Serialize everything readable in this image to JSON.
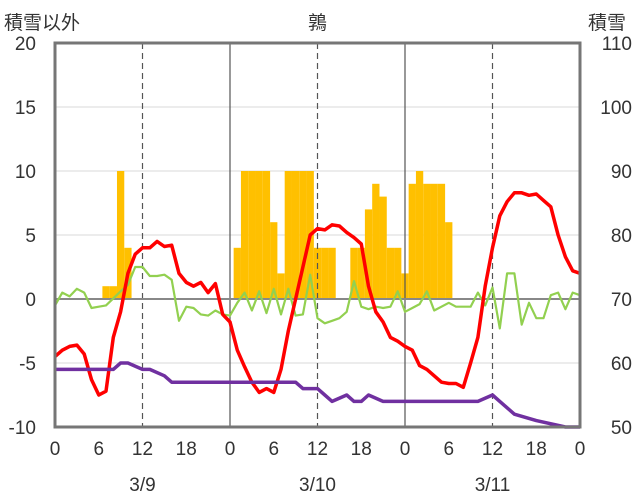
{
  "header": {
    "left_label": "積雪以外",
    "title": "鶉",
    "right_label": "積雪"
  },
  "chart_data": {
    "type": "bar",
    "title": "鶉",
    "y_left": {
      "label": "積雪以外",
      "lim": [
        -10,
        20
      ],
      "ticks": [
        "20",
        "15",
        "10",
        "5",
        "0",
        "-5",
        "-10"
      ]
    },
    "y_right": {
      "label": "積雪",
      "lim": [
        50,
        110
      ],
      "ticks": [
        "110",
        "100",
        "90",
        "80",
        "70",
        "60",
        "50"
      ]
    },
    "x_hours": [
      "0",
      "6",
      "12",
      "18",
      "0",
      "6",
      "12",
      "18",
      "0",
      "6",
      "12",
      "18",
      "0"
    ],
    "dates": [
      "3/9",
      "3/10",
      "3/11"
    ],
    "grid": "dashed vertical lines at 12h, solid at day boundaries",
    "colors": {
      "bars": "#ffc000",
      "red_line": "#ff0000",
      "green_line": "#92d050",
      "purple_line": "#7030a0",
      "zero_line": "#888888",
      "grid": "#555555"
    },
    "series": [
      {
        "kind": "bar",
        "color": "#ffc000",
        "x": [
          7,
          8,
          9,
          10,
          25,
          26,
          27,
          28,
          29,
          30,
          31,
          32,
          33,
          34,
          35,
          36,
          37,
          38,
          41,
          42,
          43,
          44,
          45,
          46,
          47,
          48,
          49,
          50,
          51,
          52,
          53,
          54
        ],
        "values": [
          1,
          1,
          10,
          4,
          4,
          10,
          10,
          10,
          10,
          6,
          2,
          10,
          10,
          10,
          10,
          4,
          4,
          4,
          4,
          4,
          7,
          9,
          8,
          4,
          4,
          2,
          9,
          10,
          9,
          9,
          9,
          6
        ]
      },
      {
        "kind": "line",
        "color": "#ff0000",
        "axis": "left",
        "x": [
          0,
          1,
          2,
          3,
          4,
          5,
          6,
          7,
          8,
          9,
          10,
          11,
          12,
          13,
          14,
          15,
          16,
          17,
          18,
          19,
          20,
          21,
          22,
          23,
          24,
          25,
          26,
          27,
          28,
          29,
          30,
          31,
          32,
          33,
          34,
          35,
          36,
          37,
          38,
          39,
          40,
          41,
          42,
          43,
          44,
          45,
          46,
          47,
          48,
          49,
          50,
          51,
          52,
          53,
          54,
          55,
          56,
          57,
          58,
          59,
          60,
          61,
          62,
          63,
          64,
          65,
          66,
          67,
          68,
          69,
          70,
          71,
          72
        ],
        "values": [
          -4.5,
          -4,
          -3.7,
          -3.6,
          -4.3,
          -6.3,
          -7.5,
          -7.2,
          -3,
          -1,
          2,
          3.5,
          4,
          4,
          4.5,
          4.1,
          4.2,
          2,
          1.3,
          1,
          1.3,
          0.5,
          1.2,
          -1.2,
          -1.8,
          -4,
          -5.3,
          -6.5,
          -7.3,
          -7,
          -7.3,
          -5.5,
          -2.5,
          0,
          2.5,
          5,
          5.5,
          5.4,
          5.8,
          5.7,
          5.2,
          4.8,
          4.3,
          1,
          -1,
          -1.8,
          -3,
          -3.3,
          -3.7,
          -4,
          -5.2,
          -5.5,
          -6,
          -6.5,
          -6.6,
          -6.6,
          -6.9,
          -5,
          -3,
          1,
          4,
          6.5,
          7.6,
          8.3,
          8.3,
          8.1,
          8.2,
          7.7,
          7.2,
          5,
          3.3,
          2.2,
          2
        ]
      },
      {
        "kind": "line",
        "color": "#92d050",
        "axis": "left",
        "x": [
          0,
          1,
          2,
          3,
          4,
          5,
          6,
          7,
          9,
          10,
          11,
          12,
          13,
          14,
          15,
          16,
          17,
          18,
          19,
          20,
          21,
          22,
          23,
          24,
          25,
          26,
          27,
          28,
          29,
          30,
          31,
          32,
          33,
          34,
          35,
          36,
          37,
          38,
          39,
          40,
          41,
          42,
          43,
          44,
          45,
          46,
          47,
          48,
          49,
          50,
          51,
          52,
          54,
          55,
          56,
          57,
          58,
          59,
          60,
          61,
          62,
          63,
          64,
          65,
          66,
          67,
          68,
          69,
          70,
          71,
          72
        ],
        "values": [
          -0.5,
          0.5,
          0.2,
          0.8,
          0.5,
          -0.7,
          -0.6,
          -0.5,
          0.6,
          1.1,
          2.5,
          2.5,
          1.8,
          1.8,
          1.9,
          1.5,
          -1.7,
          -0.6,
          -0.7,
          -1.2,
          -1.3,
          -0.9,
          -1.2,
          -1.3,
          -0.3,
          0.5,
          -0.9,
          0.6,
          -1.1,
          0.8,
          -1.2,
          0.8,
          -1.3,
          -1.2,
          1.9,
          -1.5,
          -1.9,
          -1.7,
          -1.5,
          -1,
          1.4,
          -0.6,
          -0.8,
          -0.6,
          -0.7,
          -0.6,
          0.6,
          -1,
          -0.7,
          -0.4,
          0.6,
          -0.9,
          -0.3,
          -0.6,
          -0.6,
          -0.6,
          0.5,
          -0.5,
          0.9,
          -2.3,
          2,
          2,
          -2,
          -0.3,
          -1.5,
          -1.5,
          0.3,
          0.5,
          -0.8,
          0.5,
          0.3
        ]
      },
      {
        "kind": "line",
        "color": "#7030a0",
        "axis": "right",
        "x": [
          0,
          8,
          9,
          10,
          12,
          13,
          15,
          16,
          24,
          25,
          33,
          34,
          36,
          37,
          38,
          40,
          41,
          42,
          43,
          45,
          46,
          58,
          60,
          61,
          62,
          63,
          66,
          70,
          72
        ],
        "values": [
          59,
          59,
          60,
          60,
          59,
          59,
          58,
          57,
          57,
          57,
          57,
          56,
          56,
          55,
          54,
          55,
          54,
          54,
          55,
          54,
          54,
          54,
          55,
          54,
          53,
          52,
          51,
          50,
          50
        ]
      }
    ]
  }
}
